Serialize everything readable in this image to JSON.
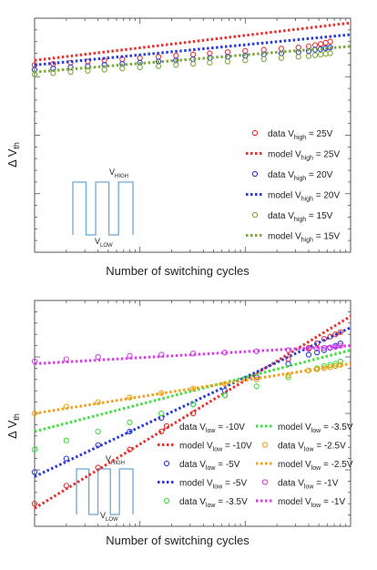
{
  "chart_data": [
    {
      "type": "scatter",
      "xlabel": "Number of switching cycles",
      "ylabel": "Δ V",
      "ylabel_sub": "th",
      "xscale": "log",
      "yscale": "log",
      "xlim": [
        1,
        1000
      ],
      "ylim": [
        0,
        1
      ],
      "ticks_labeled": false,
      "legend_position": "right",
      "inset": {
        "high_label": "V",
        "high_sub": "HIGH",
        "low_label": "V",
        "low_sub": "LOW"
      },
      "series": [
        {
          "name": "data V",
          "sub": "high",
          "suffix": " = 25V",
          "kind": "data",
          "color": "#e8302f",
          "x": [
            1,
            1.5,
            2.2,
            3.2,
            4.6,
            6.8,
            10,
            15,
            22,
            32,
            46,
            68,
            100,
            150,
            220,
            320,
            400,
            460,
            520,
            580,
            640
          ],
          "y": [
            0.8,
            0.805,
            0.81,
            0.815,
            0.82,
            0.825,
            0.83,
            0.835,
            0.84,
            0.845,
            0.85,
            0.855,
            0.86,
            0.865,
            0.87,
            0.875,
            0.88,
            0.885,
            0.89,
            0.895,
            0.9
          ]
        },
        {
          "name": "model V",
          "sub": "high",
          "suffix": " = 25V",
          "kind": "model",
          "color": "#e8302f",
          "x": [
            1,
            1000
          ],
          "y": [
            0.82,
            0.98
          ]
        },
        {
          "name": "data V",
          "sub": "high",
          "suffix": " = 20V",
          "kind": "data",
          "color": "#2a3bd8",
          "x": [
            1,
            1.5,
            2.2,
            3.2,
            4.6,
            6.8,
            10,
            15,
            22,
            32,
            46,
            68,
            100,
            150,
            220,
            320,
            400,
            460,
            520,
            580,
            640
          ],
          "y": [
            0.78,
            0.785,
            0.79,
            0.795,
            0.8,
            0.805,
            0.81,
            0.815,
            0.82,
            0.825,
            0.83,
            0.835,
            0.84,
            0.845,
            0.85,
            0.855,
            0.86,
            0.865,
            0.868,
            0.872,
            0.875
          ]
        },
        {
          "name": "model V",
          "sub": "high",
          "suffix": " = 20V",
          "kind": "model",
          "color": "#2a3bd8",
          "x": [
            1,
            1000
          ],
          "y": [
            0.8,
            0.93
          ]
        },
        {
          "name": "data V",
          "sub": "high",
          "suffix": " = 15V",
          "kind": "data",
          "color": "#7ea83a",
          "x": [
            1,
            1.5,
            2.2,
            3.2,
            4.6,
            6.8,
            10,
            15,
            22,
            32,
            46,
            68,
            100,
            150,
            220,
            320,
            400,
            460,
            520,
            580,
            640
          ],
          "y": [
            0.76,
            0.765,
            0.77,
            0.775,
            0.78,
            0.785,
            0.79,
            0.795,
            0.8,
            0.805,
            0.81,
            0.815,
            0.82,
            0.825,
            0.83,
            0.835,
            0.838,
            0.842,
            0.845,
            0.848,
            0.85
          ]
        },
        {
          "name": "model V",
          "sub": "high",
          "suffix": " = 15V",
          "kind": "model",
          "color": "#7ea83a",
          "x": [
            1,
            1000
          ],
          "y": [
            0.77,
            0.88
          ]
        }
      ]
    },
    {
      "type": "scatter",
      "xlabel": "Number of switching cycles",
      "ylabel": "Δ V",
      "ylabel_sub": "th",
      "xscale": "log",
      "yscale": "log",
      "xlim": [
        1,
        1000
      ],
      "ylim": [
        0,
        1
      ],
      "ticks_labeled": false,
      "legend_position": "bottom-right",
      "inset": {
        "high_label": "V",
        "high_sub": "HIGH",
        "low_label": "V",
        "low_sub": "LOW"
      },
      "series": [
        {
          "name": "data V",
          "sub": "low",
          "suffix": " = -10V",
          "kind": "data",
          "color": "#e8302f",
          "x": [
            1,
            2,
            4,
            8,
            16,
            32,
            64,
            128,
            256,
            400,
            480,
            560,
            640,
            720,
            800
          ],
          "y": [
            0.1,
            0.18,
            0.26,
            0.34,
            0.42,
            0.5,
            0.58,
            0.66,
            0.74,
            0.79,
            0.81,
            0.83,
            0.84,
            0.85,
            0.86
          ]
        },
        {
          "name": "model V",
          "sub": "low",
          "suffix": " = -10V",
          "kind": "model",
          "color": "#e8302f",
          "x": [
            1,
            1000
          ],
          "y": [
            0.08,
            0.93
          ]
        },
        {
          "name": "data V",
          "sub": "low",
          "suffix": " = -5V",
          "kind": "data",
          "color": "#2a3bd8",
          "x": [
            1,
            2,
            4,
            8,
            16,
            32,
            64,
            128,
            256,
            400,
            480,
            560,
            640,
            720,
            800
          ],
          "y": [
            0.24,
            0.3,
            0.36,
            0.42,
            0.48,
            0.54,
            0.6,
            0.66,
            0.72,
            0.76,
            0.77,
            0.78,
            0.79,
            0.8,
            0.81
          ]
        },
        {
          "name": "model V",
          "sub": "low",
          "suffix": " = -5V",
          "kind": "model",
          "color": "#2a3bd8",
          "x": [
            1,
            1000
          ],
          "y": [
            0.22,
            0.88
          ]
        },
        {
          "name": "data V",
          "sub": "low",
          "suffix": " = -3.5V",
          "kind": "data",
          "color": "#3ee03e",
          "x": [
            1,
            2,
            4,
            8,
            16,
            32,
            64,
            128,
            256,
            400,
            480,
            560,
            640,
            720,
            800
          ],
          "y": [
            0.34,
            0.38,
            0.42,
            0.46,
            0.5,
            0.54,
            0.58,
            0.62,
            0.66,
            0.69,
            0.7,
            0.71,
            0.715,
            0.72,
            0.73
          ]
        },
        {
          "name": "model V",
          "sub": "low",
          "suffix": " = -3.5V",
          "kind": "model",
          "color": "#3ee03e",
          "x": [
            1,
            1000
          ],
          "y": [
            0.42,
            0.78
          ]
        },
        {
          "name": "data V",
          "sub": "low",
          "suffix": " = -2.5V",
          "kind": "data",
          "color": "#f0a016",
          "x": [
            1,
            2,
            4,
            8,
            16,
            32,
            64,
            128,
            256,
            400,
            480,
            560,
            640,
            720,
            800
          ],
          "y": [
            0.5,
            0.53,
            0.55,
            0.57,
            0.59,
            0.61,
            0.63,
            0.65,
            0.67,
            0.69,
            0.695,
            0.7,
            0.705,
            0.71,
            0.715
          ]
        },
        {
          "name": "model V",
          "sub": "low",
          "suffix": " = -2.5V",
          "kind": "model",
          "color": "#f0a016",
          "x": [
            1,
            1000
          ],
          "y": [
            0.5,
            0.72
          ]
        },
        {
          "name": "data V",
          "sub": "low",
          "suffix": " = -1V",
          "kind": "data",
          "color": "#d63ee8",
          "x": [
            1,
            2,
            4,
            8,
            16,
            32,
            64,
            128,
            256,
            400,
            480,
            560,
            640,
            720,
            800
          ],
          "y": [
            0.73,
            0.74,
            0.75,
            0.755,
            0.76,
            0.765,
            0.77,
            0.775,
            0.78,
            0.785,
            0.787,
            0.79,
            0.792,
            0.795,
            0.8
          ]
        },
        {
          "name": "model V",
          "sub": "low",
          "suffix": " = -1V",
          "kind": "model",
          "color": "#d63ee8",
          "x": [
            1,
            1000
          ],
          "y": [
            0.72,
            0.8
          ]
        }
      ]
    }
  ]
}
